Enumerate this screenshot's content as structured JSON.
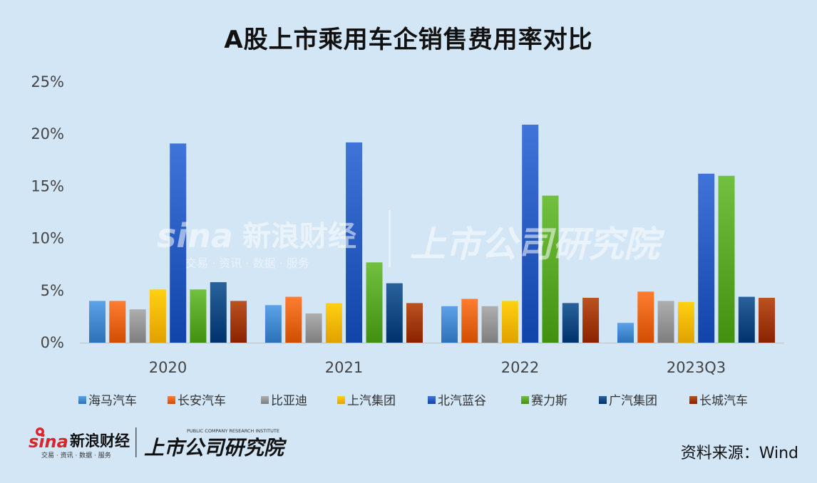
{
  "title": "A股上市乘用车企销售费用率对比",
  "source": "资料来源：Wind",
  "logo": {
    "sina_text": "sina",
    "brand": "新浪财经",
    "tagline": "交易 · 资讯 · 数据 · 服务",
    "institute": "上市公司研究院",
    "institute_en": "PUBLIC COMPANY RESEARCH INSTITUTE"
  },
  "colors": {
    "background": "#d3e6f6",
    "sina_red": "#d7262e"
  },
  "chart_data": {
    "type": "bar",
    "categories": [
      "2020",
      "2021",
      "2022",
      "2023Q3"
    ],
    "ylim": [
      0,
      25
    ],
    "yticks": [
      "0%",
      "5%",
      "10%",
      "15%",
      "20%",
      "25%"
    ],
    "grid": false,
    "legend_position": "bottom",
    "series": [
      {
        "name": "海马汽车",
        "color": "#4a90d6",
        "values": [
          4.0,
          3.6,
          3.5,
          1.9
        ]
      },
      {
        "name": "长安汽车",
        "color": "#ee6b1f",
        "values": [
          4.0,
          4.4,
          4.2,
          4.9
        ]
      },
      {
        "name": "比亚迪",
        "color": "#9c9c9c",
        "values": [
          3.2,
          2.8,
          3.5,
          4.0
        ]
      },
      {
        "name": "上汽集团",
        "color": "#ffbf00",
        "values": [
          5.1,
          3.8,
          4.0,
          3.9
        ]
      },
      {
        "name": "北汽蓝谷",
        "color": "#2e62c7",
        "values": [
          19.1,
          19.2,
          20.9,
          16.2
        ]
      },
      {
        "name": "赛力斯",
        "color": "#5fae2e",
        "values": [
          5.1,
          7.7,
          14.1,
          16.0
        ]
      },
      {
        "name": "广汽集团",
        "color": "#17508a",
        "values": [
          5.8,
          5.7,
          3.8,
          4.4
        ]
      },
      {
        "name": "长城汽车",
        "color": "#a8400f",
        "values": [
          4.0,
          3.8,
          4.3,
          4.3
        ]
      }
    ]
  }
}
